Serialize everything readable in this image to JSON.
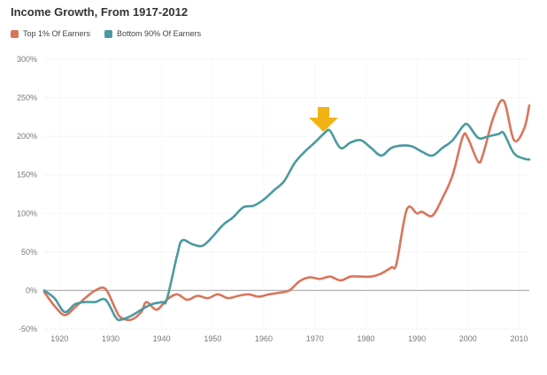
{
  "chart_data": {
    "type": "line",
    "title": "Income Growth, From 1917-2012",
    "xlabel": "",
    "ylabel": "",
    "x_ticks": [
      "1920",
      "1930",
      "1940",
      "1950",
      "1960",
      "1970",
      "1980",
      "1990",
      "2000",
      "2010"
    ],
    "y_ticks": [
      "-50%",
      "0%",
      "50%",
      "100%",
      "150%",
      "200%",
      "250%",
      "300%"
    ],
    "ylim": [
      -50,
      300
    ],
    "xlim": [
      1917,
      2012
    ],
    "grid": true,
    "legend_position": "top-left",
    "series": [
      {
        "name": "Top 1% Of Earners",
        "color": "#d9755a",
        "x": [
          1917,
          1919,
          1921,
          1923,
          1925,
          1927,
          1929,
          1931,
          1932,
          1934,
          1936,
          1937,
          1939,
          1941,
          1943,
          1945,
          1947,
          1949,
          1951,
          1953,
          1955,
          1957,
          1959,
          1961,
          1963,
          1965,
          1967,
          1969,
          1971,
          1973,
          1975,
          1977,
          1979,
          1981,
          1983,
          1985,
          1986,
          1988,
          1990,
          1991,
          1993,
          1995,
          1997,
          1999,
          2000,
          2002,
          2003,
          2005,
          2007,
          2009,
          2011,
          2012
        ],
        "values": [
          -2,
          -20,
          -32,
          -22,
          -10,
          0,
          2,
          -25,
          -35,
          -38,
          -28,
          -15,
          -25,
          -12,
          -5,
          -12,
          -7,
          -10,
          -5,
          -10,
          -7,
          -5,
          -8,
          -5,
          -3,
          0,
          12,
          17,
          15,
          18,
          13,
          18,
          18,
          18,
          22,
          30,
          35,
          105,
          100,
          102,
          97,
          120,
          150,
          200,
          197,
          167,
          178,
          225,
          246,
          195,
          210,
          240
        ]
      },
      {
        "name": "Bottom 90% Of Earners",
        "color": "#4a9aa0",
        "x": [
          1917,
          1919,
          1921,
          1923,
          1925,
          1927,
          1929,
          1931,
          1932,
          1934,
          1936,
          1938,
          1940,
          1941,
          1943,
          1944,
          1946,
          1948,
          1950,
          1952,
          1954,
          1956,
          1958,
          1960,
          1962,
          1964,
          1966,
          1968,
          1970,
          1972,
          1973,
          1975,
          1977,
          1979,
          1981,
          1983,
          1985,
          1987,
          1989,
          1991,
          1993,
          1995,
          1997,
          1999,
          2000,
          2002,
          2004,
          2006,
          2007,
          2009,
          2011,
          2012
        ],
        "values": [
          0,
          -10,
          -28,
          -18,
          -15,
          -15,
          -12,
          -35,
          -38,
          -33,
          -25,
          -18,
          -15,
          -12,
          45,
          65,
          60,
          58,
          70,
          85,
          95,
          108,
          110,
          118,
          130,
          142,
          165,
          180,
          192,
          205,
          207,
          185,
          192,
          195,
          185,
          175,
          185,
          188,
          187,
          180,
          175,
          185,
          195,
          213,
          215,
          198,
          200,
          203,
          204,
          178,
          171,
          170
        ]
      }
    ]
  }
}
